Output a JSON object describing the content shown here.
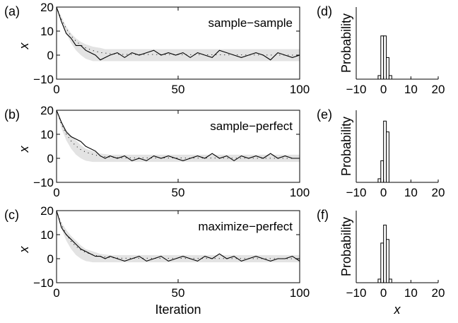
{
  "colors": {
    "trace": "#000000",
    "band": "#e3e3e3",
    "bar_fill": "#ffffff",
    "bar_edge": "#000000",
    "axis": "#000000"
  },
  "chart_data": [
    {
      "type": "line",
      "panel_label": "(a)",
      "series_label": "sample−sample",
      "ylabel": "x",
      "xlabel": "",
      "xlim": [
        0,
        100
      ],
      "ylim": [
        -10,
        20
      ],
      "xticks": [
        "0",
        "50",
        "100"
      ],
      "yticks": [
        "20",
        "10",
        "0",
        "−10"
      ],
      "band": {
        "x": [
          0,
          2,
          4,
          6,
          8,
          10,
          12,
          15,
          18,
          20,
          25,
          100
        ],
        "lower": [
          20,
          14,
          9,
          5,
          2,
          0,
          -1.5,
          -2.5,
          -2.5,
          -2.5,
          -2.5,
          -2.5
        ],
        "upper": [
          20,
          16,
          12,
          9,
          7,
          5.5,
          4.5,
          3.5,
          3,
          2.5,
          2.5,
          2.5
        ]
      },
      "mean": {
        "x": [
          0,
          2,
          4,
          6,
          8,
          10,
          12,
          15,
          18,
          22,
          26,
          100
        ],
        "y": [
          20,
          14.9,
          11,
          8,
          5.8,
          4.2,
          3,
          1.9,
          1.1,
          0.6,
          0.3,
          0
        ]
      },
      "trace": {
        "x": [
          0,
          2,
          4,
          6,
          8,
          10,
          12,
          14,
          16,
          18,
          20,
          22,
          25,
          28,
          31,
          34,
          37,
          40,
          43,
          46,
          49,
          52,
          55,
          58,
          61,
          64,
          67,
          70,
          73,
          76,
          79,
          82,
          85,
          88,
          91,
          94,
          97,
          100
        ],
        "y": [
          20,
          14,
          9,
          7,
          4,
          4,
          2,
          1,
          0,
          -2,
          -1,
          0,
          1,
          -1,
          1,
          0,
          1,
          2,
          0,
          1,
          0,
          1,
          -1,
          1,
          0,
          -1,
          2,
          1,
          0,
          -1,
          0,
          1,
          0,
          -2,
          1,
          0,
          -1,
          0
        ]
      }
    },
    {
      "type": "line",
      "panel_label": "(b)",
      "series_label": "sample−perfect",
      "ylabel": "x",
      "xlabel": "",
      "xlim": [
        0,
        100
      ],
      "ylim": [
        -10,
        20
      ],
      "xticks": [
        "0",
        "50",
        "100"
      ],
      "yticks": [
        "20",
        "10",
        "0",
        "−10"
      ],
      "band": {
        "x": [
          0,
          2,
          4,
          6,
          8,
          10,
          12,
          15,
          18,
          22,
          28,
          100
        ],
        "lower": [
          20,
          12.5,
          7.5,
          4,
          1.5,
          0,
          -1,
          -1.5,
          -1.5,
          -1.5,
          -1.5,
          -1.5
        ],
        "upper": [
          20,
          15,
          12,
          9.5,
          7.5,
          5.5,
          4,
          3,
          2,
          1.5,
          1.5,
          1.5
        ]
      },
      "mean": {
        "x": [
          0,
          2,
          4,
          6,
          8,
          10,
          12,
          15,
          18,
          22,
          26,
          100
        ],
        "y": [
          20,
          14.2,
          10.1,
          7.2,
          5.1,
          3.6,
          2.6,
          1.6,
          0.9,
          0.5,
          0.2,
          0
        ]
      },
      "trace": {
        "x": [
          0,
          2,
          4,
          6,
          8,
          10,
          12,
          14,
          16,
          18,
          20,
          22,
          25,
          28,
          31,
          34,
          37,
          40,
          43,
          46,
          49,
          52,
          55,
          58,
          61,
          64,
          67,
          70,
          73,
          76,
          79,
          82,
          85,
          88,
          91,
          94,
          97,
          100
        ],
        "y": [
          20,
          15,
          11,
          9,
          8,
          7,
          5,
          4,
          3,
          1,
          0,
          1,
          0,
          1,
          -1,
          0,
          -1,
          1,
          0,
          1,
          0,
          -1,
          0,
          1,
          0,
          2,
          0,
          1,
          -1,
          1,
          0,
          1,
          0,
          2,
          0,
          1,
          0,
          0
        ]
      }
    },
    {
      "type": "line",
      "panel_label": "(c)",
      "series_label": "maximize−perfect",
      "ylabel": "x",
      "xlabel": "Iteration",
      "xlim": [
        0,
        100
      ],
      "ylim": [
        -10,
        20
      ],
      "xticks": [
        "0",
        "50",
        "100"
      ],
      "yticks": [
        "20",
        "10",
        "0",
        "−10"
      ],
      "band": {
        "x": [
          0,
          2,
          4,
          6,
          8,
          10,
          12,
          15,
          18,
          22,
          28,
          100
        ],
        "lower": [
          20,
          12.5,
          7.5,
          4,
          1.5,
          0,
          -1,
          -1.5,
          -1.5,
          -1.5,
          -1.5,
          -1.5
        ],
        "upper": [
          20,
          15,
          12,
          9.5,
          7.5,
          5.5,
          4,
          3,
          2,
          1.5,
          1.5,
          1.5
        ]
      },
      "mean": {
        "x": [
          0,
          2,
          4,
          6,
          8,
          10,
          12,
          15,
          18,
          22,
          26,
          100
        ],
        "y": [
          20,
          14.2,
          10.1,
          7.2,
          5.1,
          3.6,
          2.6,
          1.6,
          0.9,
          0.5,
          0.2,
          0
        ]
      },
      "trace": {
        "x": [
          0,
          2,
          4,
          6,
          8,
          10,
          12,
          14,
          16,
          18,
          20,
          22,
          25,
          28,
          31,
          34,
          37,
          40,
          43,
          46,
          49,
          52,
          55,
          58,
          61,
          64,
          67,
          70,
          73,
          76,
          79,
          82,
          85,
          88,
          91,
          94,
          97,
          100
        ],
        "y": [
          20,
          13,
          10,
          8,
          6,
          4,
          3,
          2,
          1,
          1,
          0,
          1,
          0,
          -1,
          0,
          1,
          -1,
          0,
          1,
          -1,
          0,
          1,
          0,
          -1,
          1,
          0,
          2,
          0,
          1,
          -1,
          0,
          1,
          0,
          -1,
          0,
          0,
          1,
          -1
        ]
      }
    },
    {
      "type": "bar",
      "panel_label": "(d)",
      "ylabel": "Probability",
      "xlabel": "",
      "xlim": [
        -10,
        20
      ],
      "ylim": [
        0,
        1
      ],
      "xticks": [
        "−10",
        "0",
        "10",
        "20"
      ],
      "bin_width": 1,
      "bins": [
        -2,
        -1,
        0,
        1,
        2
      ],
      "values": [
        0.05,
        0.6,
        0.6,
        0.3,
        0.05
      ]
    },
    {
      "type": "bar",
      "panel_label": "(e)",
      "ylabel": "Probability",
      "xlabel": "",
      "xlim": [
        -10,
        20
      ],
      "ylim": [
        0,
        1
      ],
      "xticks": [
        "−10",
        "0",
        "10",
        "20"
      ],
      "bin_width": 1,
      "bins": [
        -2,
        -1,
        0,
        1
      ],
      "values": [
        0.05,
        0.3,
        0.85,
        0.7
      ]
    },
    {
      "type": "bar",
      "panel_label": "(f)",
      "ylabel": "Probability",
      "xlabel": "x",
      "xlim": [
        -10,
        20
      ],
      "ylim": [
        0,
        1
      ],
      "xticks": [
        "−10",
        "0",
        "10",
        "20"
      ],
      "bin_width": 1,
      "bins": [
        -2,
        -1,
        0,
        1,
        2
      ],
      "values": [
        0.05,
        0.55,
        0.8,
        0.6,
        0.05
      ]
    }
  ]
}
